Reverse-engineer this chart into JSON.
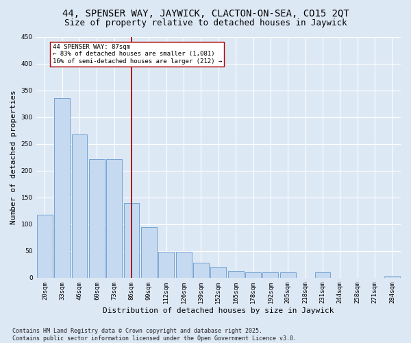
{
  "title": "44, SPENSER WAY, JAYWICK, CLACTON-ON-SEA, CO15 2QT",
  "subtitle": "Size of property relative to detached houses in Jaywick",
  "xlabel": "Distribution of detached houses by size in Jaywick",
  "ylabel": "Number of detached properties",
  "categories": [
    "20sqm",
    "33sqm",
    "46sqm",
    "60sqm",
    "73sqm",
    "86sqm",
    "99sqm",
    "112sqm",
    "126sqm",
    "139sqm",
    "152sqm",
    "165sqm",
    "178sqm",
    "192sqm",
    "205sqm",
    "218sqm",
    "231sqm",
    "244sqm",
    "258sqm",
    "271sqm",
    "284sqm"
  ],
  "values": [
    117,
    335,
    268,
    222,
    222,
    140,
    95,
    48,
    48,
    28,
    20,
    13,
    10,
    10,
    10,
    0,
    10,
    0,
    0,
    0,
    2
  ],
  "bar_color": "#c5d9f0",
  "bar_edge_color": "#6699cc",
  "vline_color": "#aa0000",
  "annotation_text": "44 SPENSER WAY: 87sqm\n← 83% of detached houses are smaller (1,081)\n16% of semi-detached houses are larger (212) →",
  "annotation_box_facecolor": "#ffffff",
  "annotation_box_edgecolor": "#aa0000",
  "ylim": [
    0,
    450
  ],
  "yticks": [
    0,
    50,
    100,
    150,
    200,
    250,
    300,
    350,
    400,
    450
  ],
  "bg_color": "#dde8f5",
  "grid_color": "#ffffff",
  "footer": "Contains HM Land Registry data © Crown copyright and database right 2025.\nContains public sector information licensed under the Open Government Licence v3.0.",
  "title_fontsize": 10,
  "subtitle_fontsize": 9,
  "axis_label_fontsize": 8,
  "tick_fontsize": 6.5,
  "footer_fontsize": 6
}
